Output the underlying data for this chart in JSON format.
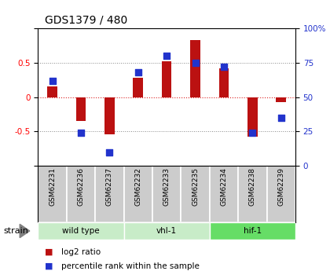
{
  "title": "GDS1379 / 480",
  "samples": [
    "GSM62231",
    "GSM62236",
    "GSM62237",
    "GSM62232",
    "GSM62233",
    "GSM62235",
    "GSM62234",
    "GSM62238",
    "GSM62239"
  ],
  "log2_ratio": [
    0.15,
    -0.35,
    -0.54,
    0.28,
    0.52,
    0.83,
    0.42,
    -0.58,
    -0.07
  ],
  "percentile_rank": [
    62,
    24,
    10,
    68,
    80,
    75,
    72,
    24,
    35
  ],
  "groups": [
    {
      "label": "wild type",
      "start": 0,
      "end": 3,
      "color": "#c8ecc8"
    },
    {
      "label": "vhl-1",
      "start": 3,
      "end": 6,
      "color": "#c8ecc8"
    },
    {
      "label": "hif-1",
      "start": 6,
      "end": 9,
      "color": "#66dd66"
    }
  ],
  "ylim_left": [
    -1,
    1
  ],
  "ylim_right": [
    0,
    100
  ],
  "yticks_left": [
    -1,
    -0.5,
    0,
    0.5,
    1
  ],
  "yticks_right": [
    0,
    25,
    50,
    75,
    100
  ],
  "bar_color": "#bb1111",
  "dot_color": "#2233cc",
  "grid_color": "#888888",
  "zero_line_color": "#dd2222",
  "bg_color": "#ffffff",
  "plot_bg": "#ffffff",
  "sample_bg": "#cccccc",
  "legend_square_red": "#bb1111",
  "legend_square_blue": "#2233cc",
  "legend_label_red": "log2 ratio",
  "legend_label_blue": "percentile rank within the sample"
}
